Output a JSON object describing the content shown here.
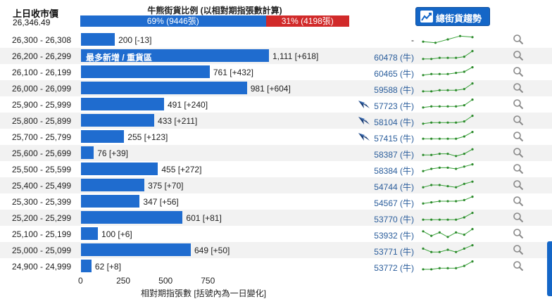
{
  "header": {
    "prev_close_label": "上日收市價",
    "prev_close_value": "26,346.49",
    "ratio_title": "牛熊街貨比例 (以相對期指張數計算)",
    "bull_label": "69% (9446張)",
    "bull_pct": 69,
    "bear_label": "31% (4198張)",
    "bear_pct": 31,
    "trend_button_label": "總街貨趨勢",
    "bull_color": "#1f6ccf",
    "bear_color": "#d12a2a"
  },
  "chart_data": {
    "type": "bar",
    "orientation": "horizontal",
    "categories": [
      "26,300 - 26,308",
      "26,200 - 26,299",
      "26,100 - 26,199",
      "26,000 - 26,099",
      "25,900 - 25,999",
      "25,800 - 25,899",
      "25,700 - 25,799",
      "25,600 - 25,699",
      "25,500 - 25,599",
      "25,400 - 25,499",
      "25,300 - 25,399",
      "25,200 - 25,299",
      "25,100 - 25,199",
      "25,000 - 25,099",
      "24,900 - 24,999"
    ],
    "values": [
      200,
      1111,
      761,
      981,
      491,
      433,
      255,
      76,
      455,
      375,
      347,
      601,
      100,
      649,
      62
    ],
    "value_labels": [
      "200 [-13]",
      "1,111 [+618]",
      "761 [+432]",
      "981 [+604]",
      "491 [+240]",
      "433 [+211]",
      "255 [+123]",
      "76 [+39]",
      "455 [+272]",
      "375 [+70]",
      "347 [+56]",
      "601 [+81]",
      "100 [+6]",
      "649 [+50]",
      "62 [+8]"
    ],
    "xlim": [
      0,
      1150
    ],
    "xticks": [
      "0",
      "250",
      "500",
      "750"
    ],
    "xtick_values": [
      0,
      250,
      500,
      750
    ],
    "xlabel": "相對期指張數 [括號內為一日變化]",
    "callout": "最多新增 / 重貨區",
    "callout_row": 1
  },
  "rows": [
    {
      "code": "-",
      "bird": false,
      "trend": [
        3,
        2,
        5,
        8,
        7
      ]
    },
    {
      "code": "60478 (牛)",
      "bird": false,
      "trend": [
        2,
        2,
        3,
        3,
        3,
        4,
        9
      ]
    },
    {
      "code": "60465 (牛)",
      "bird": false,
      "trend": [
        2,
        3,
        3,
        3,
        4,
        5,
        9
      ]
    },
    {
      "code": "59588 (牛)",
      "bird": false,
      "trend": [
        2,
        2,
        3,
        3,
        3,
        4,
        9
      ]
    },
    {
      "code": "57723 (牛)",
      "bird": true,
      "trend": [
        2,
        3,
        3,
        3,
        3,
        4,
        9
      ]
    },
    {
      "code": "58104 (牛)",
      "bird": true,
      "trend": [
        2,
        3,
        3,
        3,
        3,
        4,
        9
      ]
    },
    {
      "code": "57415 (牛)",
      "bird": true,
      "trend": [
        3,
        3,
        3,
        3,
        3,
        5,
        9
      ]
    },
    {
      "code": "58387 (牛)",
      "bird": false,
      "trend": [
        3,
        3,
        4,
        4,
        2,
        4,
        8
      ]
    },
    {
      "code": "58384 (牛)",
      "bird": false,
      "trend": [
        3,
        5,
        6,
        6,
        5,
        7,
        9
      ]
    },
    {
      "code": "54744 (牛)",
      "bird": false,
      "trend": [
        3,
        5,
        5,
        4,
        3,
        6,
        8
      ]
    },
    {
      "code": "54567 (牛)",
      "bird": false,
      "trend": [
        3,
        4,
        5,
        5,
        5,
        6,
        9
      ]
    },
    {
      "code": "53770 (牛)",
      "bird": false,
      "trend": [
        3,
        3,
        3,
        3,
        3,
        5,
        9
      ]
    },
    {
      "code": "53932 (牛)",
      "bird": false,
      "trend": [
        7,
        3,
        6,
        2,
        6,
        4,
        9
      ]
    },
    {
      "code": "53771 (牛)",
      "bird": false,
      "trend": [
        6,
        3,
        3,
        5,
        3,
        6,
        9
      ]
    },
    {
      "code": "53772 (牛)",
      "bird": false,
      "trend": [
        2,
        2,
        3,
        3,
        3,
        5,
        9
      ]
    }
  ],
  "icons": {
    "trend_button": "trend-chart-icon",
    "magnifier": "magnifier-icon",
    "bird": "bird-logo-icon"
  }
}
